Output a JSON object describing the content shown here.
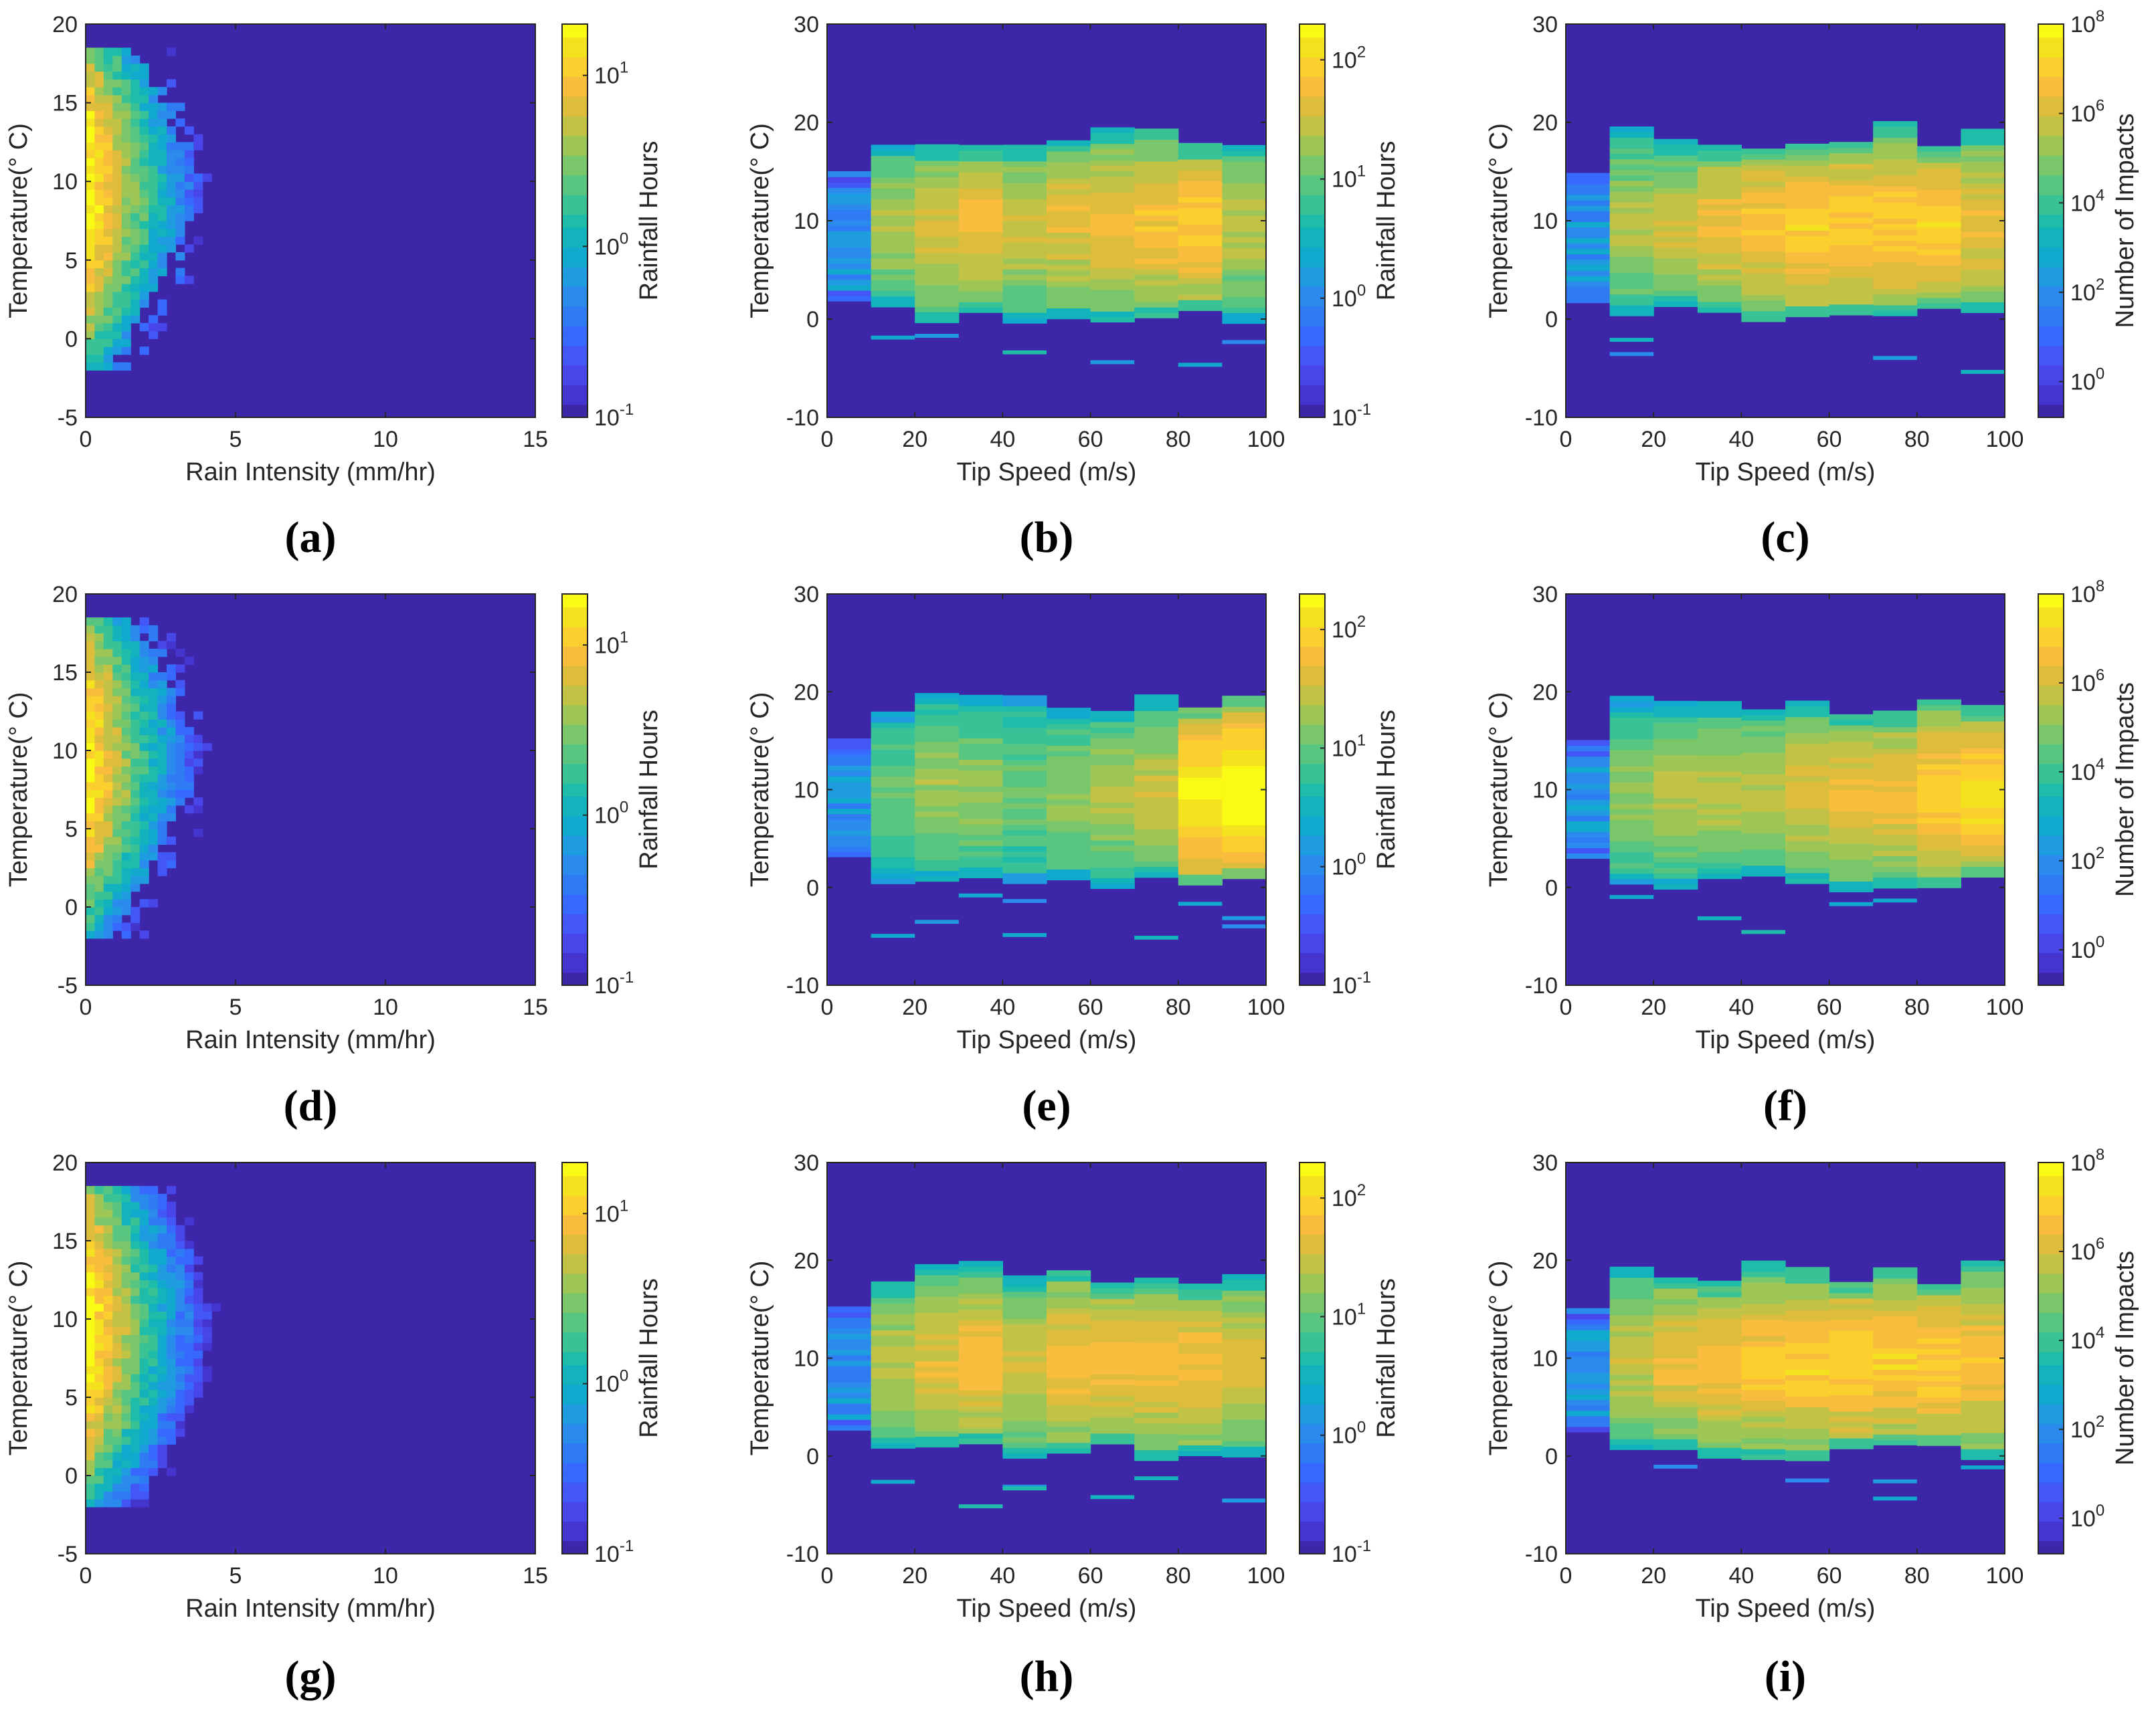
{
  "colors": {
    "colormap": [
      "#3e26a8",
      "#4435cf",
      "#4846e8",
      "#4357f7",
      "#3769fe",
      "#2e7bf3",
      "#2a8bed",
      "#1f9be0",
      "#12a9cf",
      "#12b3bd",
      "#1fbcaa",
      "#3ac297",
      "#58c580",
      "#7ac66a",
      "#9ec657",
      "#c1c246",
      "#dfbd3c",
      "#f9bd3e",
      "#fbcf2e",
      "#f5e21f",
      "#f9fb15"
    ],
    "background": "#3e26a8"
  },
  "chart_data": [
    {
      "panel": "(a)",
      "type": "heatmap",
      "xlabel": "Rain Intensity (mm/hr)",
      "ylabel": "Temperature(° C)",
      "xlim": [
        0,
        15
      ],
      "ylim": [
        -5,
        20
      ],
      "xticks": [
        "0",
        "5",
        "10",
        "15"
      ],
      "yticks": [
        "-5",
        "0",
        "5",
        "10",
        "15",
        "20"
      ],
      "colorbar": {
        "label": "Rainfall Hours",
        "scale": "log",
        "range_log10": [
          -1,
          1.3
        ],
        "ticks": [
          {
            "base": "10",
            "exp": "-1",
            "v": -1
          },
          {
            "base": "10",
            "exp": "0",
            "v": 0
          },
          {
            "base": "10",
            "exp": "1",
            "v": 1
          }
        ]
      },
      "distribution": {
        "kind": "intensity",
        "xmax": 6.5,
        "hot_log10": 1.2,
        "seed": 11
      }
    },
    {
      "panel": "(b)",
      "type": "heatmap",
      "xlabel": "Tip Speed (m/s)",
      "ylabel": "Temperature(° C)",
      "xlim": [
        0,
        100
      ],
      "ylim": [
        -10,
        30
      ],
      "xticks": [
        "0",
        "20",
        "40",
        "60",
        "80",
        "100"
      ],
      "yticks": [
        "-10",
        "0",
        "10",
        "20",
        "30"
      ],
      "colorbar": {
        "label": "Rainfall Hours",
        "scale": "log",
        "range_log10": [
          -1,
          2.3
        ],
        "ticks": [
          {
            "base": "10",
            "exp": "-1",
            "v": -1
          },
          {
            "base": "10",
            "exp": "0",
            "v": 0
          },
          {
            "base": "10",
            "exp": "1",
            "v": 1
          },
          {
            "base": "10",
            "exp": "2",
            "v": 2
          }
        ]
      },
      "distribution": {
        "kind": "tip",
        "weights": [
          0.35,
          0.6,
          0.68,
          0.72,
          0.65,
          0.7,
          0.72,
          0.75,
          0.78,
          0.62
        ],
        "hot_log10": 1.2,
        "seed": 21
      }
    },
    {
      "panel": "(c)",
      "type": "heatmap",
      "xlabel": "Tip Speed (m/s)",
      "ylabel": "Temperature(° C)",
      "xlim": [
        0,
        100
      ],
      "ylim": [
        -10,
        30
      ],
      "xticks": [
        "0",
        "20",
        "40",
        "60",
        "80",
        "100"
      ],
      "yticks": [
        "-10",
        "0",
        "10",
        "20",
        "30"
      ],
      "colorbar": {
        "label": "Number of Impacts",
        "scale": "log",
        "range_log10": [
          -0.8,
          8
        ],
        "ticks": [
          {
            "base": "10",
            "exp": "0",
            "v": 0
          },
          {
            "base": "10",
            "exp": "2",
            "v": 2
          },
          {
            "base": "10",
            "exp": "4",
            "v": 4
          },
          {
            "base": "10",
            "exp": "6",
            "v": 6
          },
          {
            "base": "10",
            "exp": "8",
            "v": 8
          }
        ]
      },
      "distribution": {
        "kind": "tip",
        "weights": [
          0.35,
          0.6,
          0.65,
          0.72,
          0.76,
          0.8,
          0.8,
          0.8,
          0.8,
          0.72
        ],
        "hot_log10": 6.4,
        "seed": 31
      }
    },
    {
      "panel": "(d)",
      "type": "heatmap",
      "xlabel": "Rain Intensity (mm/hr)",
      "ylabel": "Temperature(° C)",
      "xlim": [
        0,
        15
      ],
      "ylim": [
        -5,
        20
      ],
      "xticks": [
        "0",
        "5",
        "10",
        "15"
      ],
      "yticks": [
        "-5",
        "0",
        "5",
        "10",
        "15",
        "20"
      ],
      "colorbar": {
        "label": "Rainfall Hours",
        "scale": "log",
        "range_log10": [
          -1,
          1.3
        ],
        "ticks": [
          {
            "base": "10",
            "exp": "-1",
            "v": -1
          },
          {
            "base": "10",
            "exp": "0",
            "v": 0
          },
          {
            "base": "10",
            "exp": "1",
            "v": 1
          }
        ]
      },
      "distribution": {
        "kind": "intensity",
        "xmax": 6.5,
        "hot_log10": 1.1,
        "seed": 41
      }
    },
    {
      "panel": "(e)",
      "type": "heatmap",
      "xlabel": "Tip Speed (m/s)",
      "ylabel": "Temperature(° C)",
      "xlim": [
        0,
        100
      ],
      "ylim": [
        -10,
        30
      ],
      "xticks": [
        "0",
        "20",
        "40",
        "60",
        "80",
        "100"
      ],
      "yticks": [
        "-10",
        "0",
        "10",
        "20",
        "30"
      ],
      "colorbar": {
        "label": "Rainfall Hours",
        "scale": "log",
        "range_log10": [
          -1,
          2.3
        ],
        "ticks": [
          {
            "base": "10",
            "exp": "-1",
            "v": -1
          },
          {
            "base": "10",
            "exp": "0",
            "v": 0
          },
          {
            "base": "10",
            "exp": "1",
            "v": 1
          },
          {
            "base": "10",
            "exp": "2",
            "v": 2
          }
        ]
      },
      "distribution": {
        "kind": "tip",
        "weights": [
          0.3,
          0.5,
          0.58,
          0.56,
          0.5,
          0.56,
          0.6,
          0.65,
          0.9,
          0.95
        ],
        "hot_log10": 1.2,
        "seed": 51
      }
    },
    {
      "panel": "(f)",
      "type": "heatmap",
      "xlabel": "Tip Speed (m/s)",
      "ylabel": "Temperature(° C)",
      "xlim": [
        0,
        100
      ],
      "ylim": [
        -10,
        30
      ],
      "xticks": [
        "0",
        "20",
        "40",
        "60",
        "80",
        "100"
      ],
      "yticks": [
        "-10",
        "0",
        "10",
        "20",
        "30"
      ],
      "colorbar": {
        "label": "Number of Impacts",
        "scale": "log",
        "range_log10": [
          -0.8,
          8
        ],
        "ticks": [
          {
            "base": "10",
            "exp": "0",
            "v": 0
          },
          {
            "base": "10",
            "exp": "2",
            "v": 2
          },
          {
            "base": "10",
            "exp": "4",
            "v": 4
          },
          {
            "base": "10",
            "exp": "6",
            "v": 6
          },
          {
            "base": "10",
            "exp": "8",
            "v": 8
          }
        ]
      },
      "distribution": {
        "kind": "tip",
        "weights": [
          0.3,
          0.55,
          0.6,
          0.62,
          0.62,
          0.68,
          0.72,
          0.74,
          0.8,
          0.85
        ],
        "hot_log10": 6.4,
        "seed": 61
      }
    },
    {
      "panel": "(g)",
      "type": "heatmap",
      "xlabel": "Rain Intensity (mm/hr)",
      "ylabel": "Temperature(° C)",
      "xlim": [
        0,
        15
      ],
      "ylim": [
        -5,
        20
      ],
      "xticks": [
        "0",
        "5",
        "10",
        "15"
      ],
      "yticks": [
        "-5",
        "0",
        "5",
        "10",
        "15",
        "20"
      ],
      "colorbar": {
        "label": "Rainfall Hours",
        "scale": "log",
        "range_log10": [
          -1,
          1.3
        ],
        "ticks": [
          {
            "base": "10",
            "exp": "-1",
            "v": -1
          },
          {
            "base": "10",
            "exp": "0",
            "v": 0
          },
          {
            "base": "10",
            "exp": "1",
            "v": 1
          }
        ]
      },
      "distribution": {
        "kind": "intensity",
        "xmax": 8,
        "hot_log10": 1.2,
        "seed": 71
      }
    },
    {
      "panel": "(h)",
      "type": "heatmap",
      "xlabel": "Tip Speed (m/s)",
      "ylabel": "Temperature(° C)",
      "xlim": [
        0,
        100
      ],
      "ylim": [
        -10,
        30
      ],
      "xticks": [
        "0",
        "20",
        "40",
        "60",
        "80",
        "100"
      ],
      "yticks": [
        "-10",
        "0",
        "10",
        "20",
        "30"
      ],
      "colorbar": {
        "label": "Rainfall Hours",
        "scale": "log",
        "range_log10": [
          -1,
          2.3
        ],
        "ticks": [
          {
            "base": "10",
            "exp": "-1",
            "v": -1
          },
          {
            "base": "10",
            "exp": "0",
            "v": 0
          },
          {
            "base": "10",
            "exp": "1",
            "v": 1
          },
          {
            "base": "10",
            "exp": "2",
            "v": 2
          }
        ]
      },
      "distribution": {
        "kind": "tip",
        "weights": [
          0.45,
          0.62,
          0.7,
          0.75,
          0.66,
          0.75,
          0.75,
          0.74,
          0.74,
          0.68
        ],
        "hot_log10": 1.2,
        "seed": 81
      }
    },
    {
      "panel": "(i)",
      "type": "heatmap",
      "xlabel": "Tip Speed (m/s)",
      "ylabel": "Temperature(° C)",
      "xlim": [
        0,
        100
      ],
      "ylim": [
        -10,
        30
      ],
      "xticks": [
        "0",
        "20",
        "40",
        "60",
        "80",
        "100"
      ],
      "yticks": [
        "-10",
        "0",
        "10",
        "20",
        "30"
      ],
      "colorbar": {
        "label": "Number of Impacts",
        "scale": "log",
        "range_log10": [
          -0.8,
          8
        ],
        "ticks": [
          {
            "base": "10",
            "exp": "0",
            "v": 0
          },
          {
            "base": "10",
            "exp": "2",
            "v": 2
          },
          {
            "base": "10",
            "exp": "4",
            "v": 4
          },
          {
            "base": "10",
            "exp": "6",
            "v": 6
          },
          {
            "base": "10",
            "exp": "8",
            "v": 8
          }
        ]
      },
      "distribution": {
        "kind": "tip",
        "weights": [
          0.35,
          0.65,
          0.72,
          0.75,
          0.78,
          0.8,
          0.82,
          0.8,
          0.8,
          0.76
        ],
        "hot_log10": 6.4,
        "seed": 91
      }
    }
  ]
}
